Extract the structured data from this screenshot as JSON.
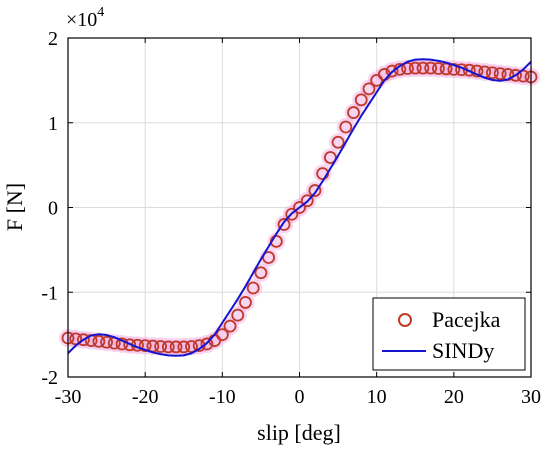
{
  "chart_data": {
    "type": "scatter",
    "xlabel": "slip [deg]",
    "ylabel": "F [N]",
    "y_multiplier": "×10",
    "y_multiplier_exp": "4",
    "xlim": [
      -30,
      30
    ],
    "ylim": [
      -20000,
      20000
    ],
    "x_ticks": [
      -30,
      -20,
      -10,
      0,
      10,
      20,
      30
    ],
    "x_tick_labels": [
      "-30",
      "-20",
      "-10",
      "0",
      "10",
      "20",
      "30"
    ],
    "y_ticks": [
      -20000,
      -10000,
      0,
      10000,
      20000
    ],
    "y_tick_labels": [
      "-2",
      "-1",
      "0",
      "1",
      "2"
    ],
    "grid": true,
    "legend_position": "bottom-right",
    "series": [
      {
        "name": "Pacejka",
        "style": "markers",
        "color": "#c0392b",
        "halo": "#f3b3e6",
        "x": [
          -30,
          -29,
          -28,
          -27,
          -26,
          -25,
          -24,
          -23,
          -22,
          -21,
          -20,
          -19,
          -18,
          -17,
          -16,
          -15,
          -14,
          -13,
          -12,
          -11,
          -10,
          -9,
          -8,
          -7,
          -6,
          -5,
          -4,
          -3,
          -2,
          -1,
          0,
          1,
          2,
          3,
          4,
          5,
          6,
          7,
          8,
          9,
          10,
          11,
          12,
          13,
          14,
          15,
          16,
          17,
          18,
          19,
          20,
          21,
          22,
          23,
          24,
          25,
          26,
          27,
          28,
          29,
          30
        ],
        "y": [
          -15400,
          -15500,
          -15600,
          -15700,
          -15800,
          -15900,
          -16000,
          -16100,
          -16200,
          -16250,
          -16300,
          -16350,
          -16400,
          -16450,
          -16450,
          -16450,
          -16400,
          -16300,
          -16100,
          -15700,
          -15000,
          -14000,
          -12700,
          -11200,
          -9500,
          -7700,
          -5900,
          -4000,
          -2000,
          -800,
          0,
          800,
          2000,
          4000,
          5900,
          7700,
          9500,
          11200,
          12700,
          14000,
          15000,
          15700,
          16100,
          16300,
          16400,
          16450,
          16450,
          16450,
          16400,
          16350,
          16300,
          16250,
          16200,
          16100,
          16000,
          15900,
          15800,
          15700,
          15600,
          15500,
          15400
        ]
      },
      {
        "name": "SINDy",
        "style": "line",
        "color": "#1515d0",
        "x": [
          -30,
          -29,
          -28,
          -27,
          -26,
          -25,
          -24,
          -23,
          -22,
          -21,
          -20,
          -19,
          -18,
          -17,
          -16,
          -15,
          -14,
          -13,
          -12,
          -11,
          -10,
          -9,
          -8,
          -7,
          -6,
          -5,
          -4,
          -3,
          -2,
          -1,
          0,
          1,
          2,
          3,
          4,
          5,
          6,
          7,
          8,
          9,
          10,
          11,
          12,
          13,
          14,
          15,
          16,
          17,
          18,
          19,
          20,
          21,
          22,
          23,
          24,
          25,
          26,
          27,
          28,
          29,
          30
        ],
        "y": [
          -17200,
          -16300,
          -15600,
          -15100,
          -14950,
          -15050,
          -15300,
          -15700,
          -16100,
          -16500,
          -16800,
          -17100,
          -17300,
          -17450,
          -17500,
          -17450,
          -17200,
          -16700,
          -16000,
          -15000,
          -13600,
          -12200,
          -10800,
          -9300,
          -7700,
          -6100,
          -4600,
          -3100,
          -1700,
          -700,
          0,
          700,
          1700,
          3100,
          4600,
          6100,
          7700,
          9300,
          10800,
          12200,
          13600,
          15000,
          16000,
          16700,
          17200,
          17450,
          17500,
          17450,
          17300,
          17100,
          16800,
          16500,
          16100,
          15700,
          15300,
          15050,
          14950,
          15100,
          15600,
          16300,
          17200
        ]
      }
    ]
  }
}
